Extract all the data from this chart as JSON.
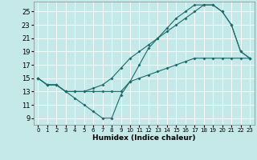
{
  "xlabel": "Humidex (Indice chaleur)",
  "xlim": [
    -0.5,
    23.5
  ],
  "ylim": [
    8.0,
    26.5
  ],
  "yticks": [
    9,
    11,
    13,
    15,
    17,
    19,
    21,
    23,
    25
  ],
  "xticks": [
    0,
    1,
    2,
    3,
    4,
    5,
    6,
    7,
    8,
    9,
    10,
    11,
    12,
    13,
    14,
    15,
    16,
    17,
    18,
    19,
    20,
    21,
    22,
    23
  ],
  "background_color": "#c5e8e8",
  "line_color": "#1a6b6b",
  "line1_x": [
    0,
    1,
    2,
    3,
    4,
    5,
    6,
    7,
    8,
    9,
    10,
    11,
    12,
    13,
    14,
    15,
    16,
    17,
    18,
    19,
    20,
    21,
    22,
    23
  ],
  "line1_y": [
    15,
    14,
    14,
    13,
    12,
    11,
    10,
    9,
    9,
    12.5,
    14.5,
    17,
    19.5,
    21,
    22,
    23,
    24,
    25,
    26,
    26,
    25,
    23,
    19,
    18
  ],
  "line2_x": [
    0,
    1,
    2,
    3,
    4,
    5,
    6,
    7,
    8,
    9,
    10,
    11,
    12,
    13,
    14,
    15,
    16,
    17,
    18,
    19,
    20,
    21,
    22,
    23
  ],
  "line2_y": [
    15,
    14,
    14,
    13,
    13,
    13,
    13,
    13,
    13,
    13,
    14.5,
    15,
    15.5,
    16,
    16.5,
    17,
    17.5,
    18,
    18,
    18,
    18,
    18,
    18,
    18
  ],
  "line3_x": [
    0,
    1,
    2,
    3,
    4,
    5,
    6,
    7,
    8,
    9,
    10,
    11,
    12,
    13,
    14,
    15,
    16,
    17,
    18,
    19,
    20,
    21,
    22,
    23
  ],
  "line3_y": [
    15,
    14,
    14,
    13,
    13,
    13,
    13.5,
    14,
    15,
    16.5,
    18,
    19,
    20,
    21,
    22.5,
    24,
    25,
    26,
    26,
    26,
    25,
    23,
    19,
    18
  ],
  "grid_color": "#ffffff",
  "xlabel_fontsize": 6.5,
  "ytick_fontsize": 6.0,
  "xtick_fontsize": 5.0
}
